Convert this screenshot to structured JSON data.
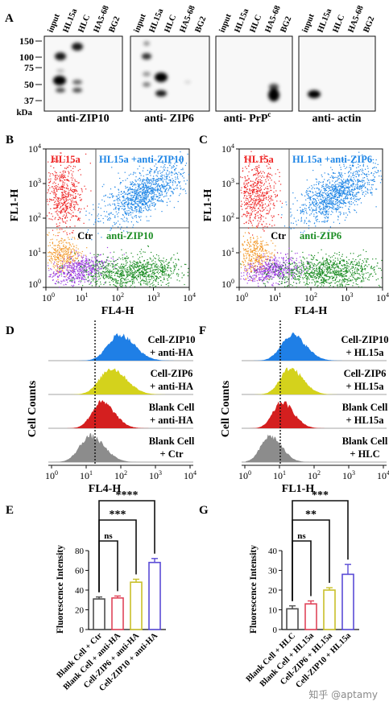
{
  "panelA": {
    "letter": "A",
    "lanes": [
      "input",
      "HL15a",
      "HLC",
      "HA5-68",
      "BG2"
    ],
    "kda_label": "kDa",
    "markers": [
      "150",
      "100",
      "75",
      "50",
      "37"
    ],
    "blots": [
      "anti-ZIP10",
      "anti- ZIP6",
      "anti- PrP",
      "anti- actin"
    ],
    "prp_superscript": "c"
  },
  "panelB": {
    "letter": "B",
    "ylabel": "FL1-H",
    "xlabel": "FL4-H",
    "q_hl15a": "HL15a",
    "q_combo": "HL15a +anti-ZIP10",
    "q_ctr": "Ctr",
    "q_anti": "anti-ZIP10",
    "ticks": [
      "10",
      "10",
      "10",
      "10",
      "10"
    ],
    "exps": [
      "0",
      "1",
      "2",
      "3",
      "4"
    ]
  },
  "panelC": {
    "letter": "C",
    "ylabel": "FL1-H",
    "xlabel": "FL4-H",
    "q_hl15a": "HL15a",
    "q_combo": "HL15a +anti-ZIP6",
    "q_ctr": "Ctr",
    "q_anti": "anti-ZIP6",
    "ticks": [
      "10",
      "10",
      "10",
      "10",
      "10"
    ],
    "exps": [
      "0",
      "1",
      "2",
      "3",
      "4"
    ]
  },
  "panelD": {
    "letter": "D",
    "ylabel": "Cell Counts",
    "xlabel": "FL4-H",
    "labels": [
      [
        "Cell-ZIP10",
        "+ anti-HA"
      ],
      [
        "Cell-ZIP6",
        "+ anti-HA"
      ],
      [
        "Blank Cell",
        "+ anti-HA"
      ],
      [
        "Blank Cell",
        "+ Ctr"
      ]
    ],
    "colors": [
      "#1f7fe6",
      "#d4d21c",
      "#d41f1f",
      "#8c8c8c"
    ]
  },
  "panelF": {
    "letter": "F",
    "ylabel": "Cell Counts",
    "xlabel": "FL1-H",
    "labels": [
      [
        "Cell-ZIP10",
        "+ HL15a"
      ],
      [
        "Cell-ZIP6",
        "+ HL15a"
      ],
      [
        "Blank Cell",
        "+ HL15a"
      ],
      [
        "Blank Cell",
        "+ HLC"
      ]
    ],
    "colors": [
      "#1f7fe6",
      "#d4d21c",
      "#d41f1f",
      "#8c8c8c"
    ]
  },
  "chart_data": [
    {
      "type": "bar",
      "panel": "E",
      "categories": [
        "Blank Cell + Ctr",
        "Blank Cell + anti-HA",
        "Cell-ZIP6 + anti-HA",
        "Cell-ZIP10 + anti-HA"
      ],
      "values": [
        31,
        32,
        48,
        68
      ],
      "errors": [
        2,
        2,
        3,
        4
      ],
      "colors": [
        "#4d4d4d",
        "#e0455a",
        "#c9c02a",
        "#5a4bd6"
      ],
      "ylabel": "Fluorescence Intensity",
      "ylim": [
        0,
        80
      ],
      "yticks": [
        0,
        20,
        40,
        60,
        80
      ],
      "significance": [
        {
          "from": 0,
          "to": 1,
          "label": "ns"
        },
        {
          "from": 0,
          "to": 2,
          "label": "***"
        },
        {
          "from": 0,
          "to": 3,
          "label": "****"
        }
      ]
    },
    {
      "type": "bar",
      "panel": "G",
      "categories": [
        "Blank Cell + HLC",
        "Blank Cell + HL15a",
        "Cell-ZIP6 + HL15a",
        "Cell-ZIP10 + HL15a"
      ],
      "values": [
        10.5,
        13,
        20,
        28
      ],
      "errors": [
        1.5,
        1.5,
        1.2,
        5
      ],
      "colors": [
        "#4d4d4d",
        "#e0455a",
        "#c9c02a",
        "#5a4bd6"
      ],
      "ylabel": "Fluorescence Intensity",
      "ylim": [
        0,
        40
      ],
      "yticks": [
        0,
        10,
        20,
        30,
        40
      ],
      "significance": [
        {
          "from": 0,
          "to": 1,
          "label": "ns"
        },
        {
          "from": 0,
          "to": 2,
          "label": "**"
        },
        {
          "from": 0,
          "to": 3,
          "label": "***"
        }
      ]
    }
  ],
  "panelE": {
    "letter": "E"
  },
  "panelG": {
    "letter": "G"
  },
  "watermark": "知乎 @aptamy"
}
